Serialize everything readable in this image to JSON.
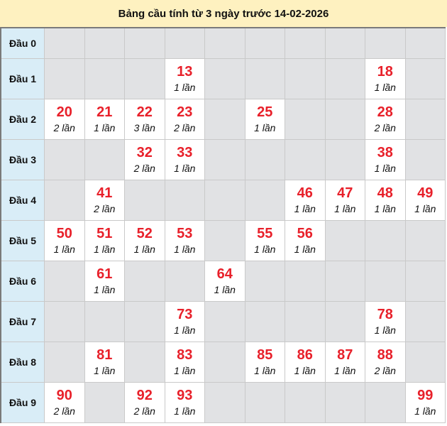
{
  "title": "Bảng cầu tính từ 3 ngày trước 14-02-2026",
  "colors": {
    "number": "#e8202a",
    "empty_cell": "#e1e2e4",
    "label_bg": "#d9edf7",
    "title_bg": "#fef1c0"
  },
  "rows": [
    {
      "label": "Đầu 0",
      "cells": [
        null,
        null,
        null,
        null,
        null,
        null,
        null,
        null,
        null,
        null
      ]
    },
    {
      "label": "Đầu 1",
      "cells": [
        null,
        null,
        null,
        {
          "num": "13",
          "count": "1 lần"
        },
        null,
        null,
        null,
        null,
        {
          "num": "18",
          "count": "1 lần"
        },
        null
      ]
    },
    {
      "label": "Đầu 2",
      "cells": [
        {
          "num": "20",
          "count": "2 lần"
        },
        {
          "num": "21",
          "count": "1 lần"
        },
        {
          "num": "22",
          "count": "3 lần"
        },
        {
          "num": "23",
          "count": "2 lần"
        },
        null,
        {
          "num": "25",
          "count": "1 lần"
        },
        null,
        null,
        {
          "num": "28",
          "count": "2 lần"
        },
        null
      ]
    },
    {
      "label": "Đầu 3",
      "cells": [
        null,
        null,
        {
          "num": "32",
          "count": "2 lần"
        },
        {
          "num": "33",
          "count": "1 lần"
        },
        null,
        null,
        null,
        null,
        {
          "num": "38",
          "count": "1 lần"
        },
        null
      ]
    },
    {
      "label": "Đầu 4",
      "cells": [
        null,
        {
          "num": "41",
          "count": "2 lần"
        },
        null,
        null,
        null,
        null,
        {
          "num": "46",
          "count": "1 lần"
        },
        {
          "num": "47",
          "count": "1 lần"
        },
        {
          "num": "48",
          "count": "1 lần"
        },
        {
          "num": "49",
          "count": "1 lần"
        }
      ]
    },
    {
      "label": "Đầu 5",
      "cells": [
        {
          "num": "50",
          "count": "1 lần"
        },
        {
          "num": "51",
          "count": "1 lần"
        },
        {
          "num": "52",
          "count": "1 lần"
        },
        {
          "num": "53",
          "count": "1 lần"
        },
        null,
        {
          "num": "55",
          "count": "1 lần"
        },
        {
          "num": "56",
          "count": "1 lần"
        },
        null,
        null,
        null
      ]
    },
    {
      "label": "Đầu 6",
      "cells": [
        null,
        {
          "num": "61",
          "count": "1 lần"
        },
        null,
        null,
        {
          "num": "64",
          "count": "1 lần"
        },
        null,
        null,
        null,
        null,
        null
      ]
    },
    {
      "label": "Đầu 7",
      "cells": [
        null,
        null,
        null,
        {
          "num": "73",
          "count": "1 lần"
        },
        null,
        null,
        null,
        null,
        {
          "num": "78",
          "count": "1 lần"
        },
        null
      ]
    },
    {
      "label": "Đầu 8",
      "cells": [
        null,
        {
          "num": "81",
          "count": "1 lần"
        },
        null,
        {
          "num": "83",
          "count": "1 lần"
        },
        null,
        {
          "num": "85",
          "count": "1 lần"
        },
        {
          "num": "86",
          "count": "1 lần"
        },
        {
          "num": "87",
          "count": "1 lần"
        },
        {
          "num": "88",
          "count": "2 lần"
        },
        null
      ]
    },
    {
      "label": "Đầu 9",
      "cells": [
        {
          "num": "90",
          "count": "2 lần"
        },
        null,
        {
          "num": "92",
          "count": "2 lần"
        },
        {
          "num": "93",
          "count": "1 lần"
        },
        null,
        null,
        null,
        null,
        null,
        {
          "num": "99",
          "count": "1 lần"
        }
      ]
    }
  ]
}
